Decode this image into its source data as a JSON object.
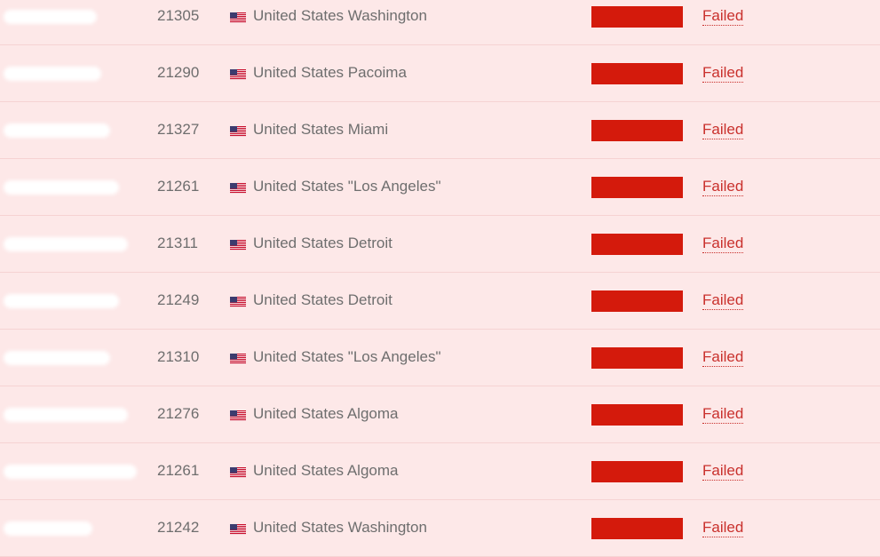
{
  "table": {
    "rows": [
      {
        "port": "21305",
        "location": "United States Washington",
        "status": "Failed"
      },
      {
        "port": "21290",
        "location": "United States Pacoima",
        "status": "Failed"
      },
      {
        "port": "21327",
        "location": "United States Miami",
        "status": "Failed"
      },
      {
        "port": "21261",
        "location": "United States \"Los Angeles\"",
        "status": "Failed"
      },
      {
        "port": "21311",
        "location": "United States Detroit",
        "status": "Failed"
      },
      {
        "port": "21249",
        "location": "United States Detroit",
        "status": "Failed"
      },
      {
        "port": "21310",
        "location": "United States \"Los Angeles\"",
        "status": "Failed"
      },
      {
        "port": "21276",
        "location": "United States Algoma",
        "status": "Failed"
      },
      {
        "port": "21261",
        "location": "United States Algoma",
        "status": "Failed"
      },
      {
        "port": "21242",
        "location": "United States Washington",
        "status": "Failed"
      }
    ]
  }
}
